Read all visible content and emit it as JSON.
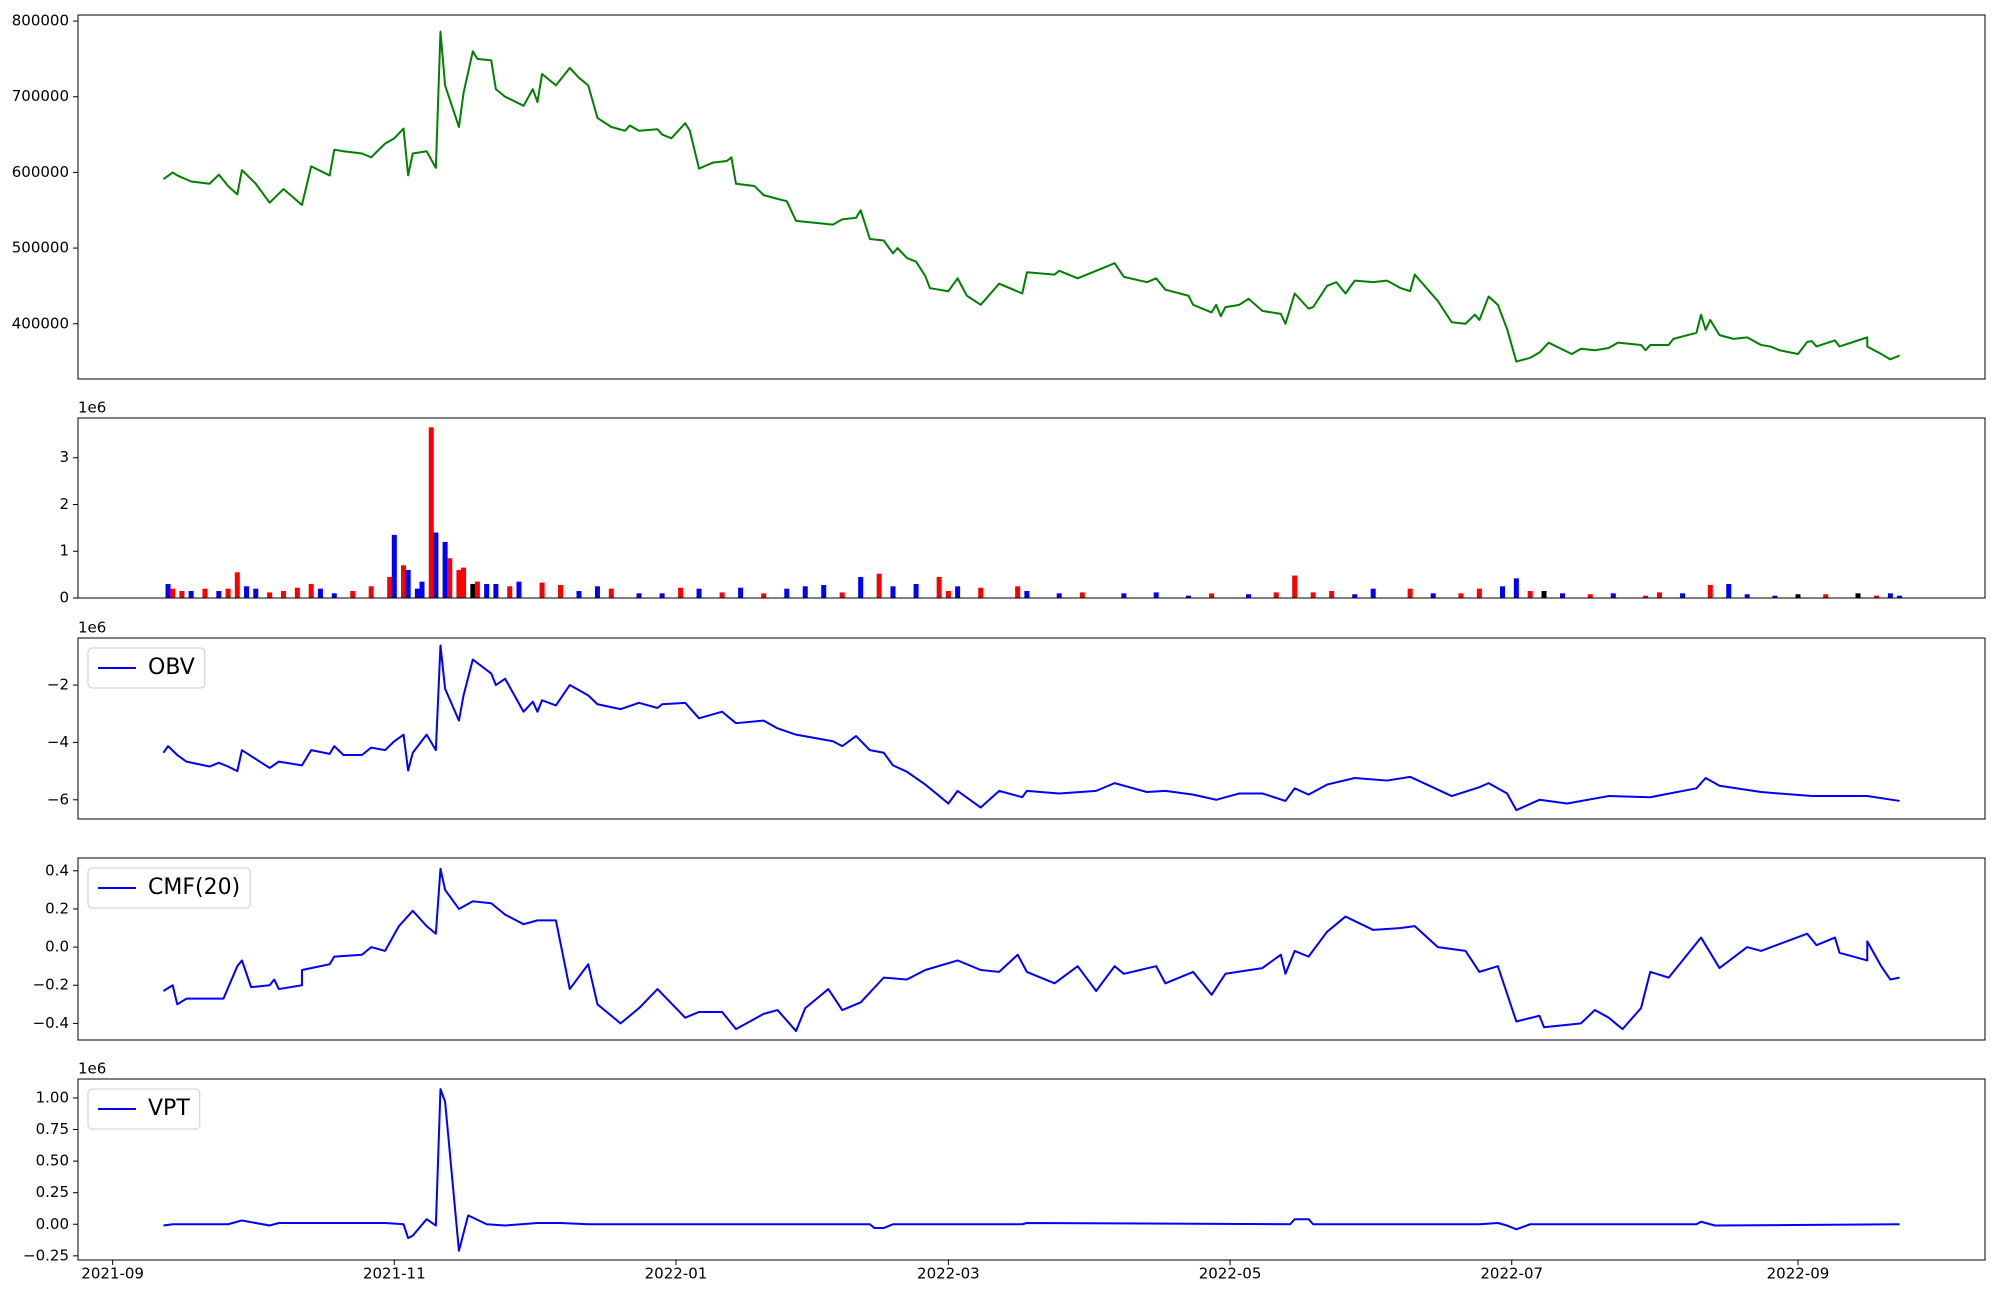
{
  "chart_data": [
    {
      "type": "line",
      "color": "#008000",
      "x": [
        11,
        13,
        14,
        17,
        21,
        23,
        25,
        27,
        28,
        31,
        34,
        37,
        41,
        43,
        47,
        48,
        50,
        54,
        56,
        59,
        61,
        63,
        64,
        65,
        68,
        70,
        71,
        72,
        75,
        76,
        78,
        79,
        82,
        83,
        85,
        89,
        91,
        92,
        93,
        96,
        99,
        101,
        103,
        105,
        108,
        111,
        112,
        114,
        118,
        119,
        121,
        124,
        125,
        127,
        130,
        133,
        134,
        135,
        139,
        141,
        144,
        146,
        148,
        156,
        158,
        161,
        162,
        164,
        167,
        169,
        170,
        172,
        174,
        176,
        177,
        181,
        183,
        185,
        188,
        192,
        197,
        198,
        204,
        205,
        209,
        213,
        217,
        219,
        224,
        226,
        228,
        233,
        234,
        238,
        239,
        240,
        241,
        244,
        246,
        249,
        253,
        254,
        256,
        259,
        260,
        263,
        265,
        267,
        269,
        273,
        276,
        279,
        281,
        282,
        287,
        290,
        293,
        295,
        296,
        298,
        300,
        302,
        304,
        307,
        309,
        311,
        316,
        318,
        321,
        324,
        326,
        331,
        332,
        333,
        337,
        338,
        343,
        344,
        345,
        346,
        348,
        351,
        354,
        357,
        359,
        361,
        365,
        367,
        368,
        369,
        373,
        374,
        380,
        380,
        383,
        385,
        387
      ],
      "values": [
        591000,
        600000,
        596000,
        588000,
        585000,
        597000,
        582000,
        571000,
        603000,
        585000,
        560000,
        578000,
        557000,
        608000,
        596000,
        630000,
        628000,
        625000,
        620000,
        638000,
        645000,
        658000,
        596000,
        625000,
        628000,
        606000,
        786000,
        715000,
        660000,
        705000,
        760000,
        750000,
        748000,
        710000,
        700000,
        688000,
        710000,
        693000,
        730000,
        715000,
        738000,
        725000,
        715000,
        672000,
        660000,
        655000,
        662000,
        655000,
        657000,
        650000,
        645000,
        665000,
        655000,
        605000,
        613000,
        615000,
        620000,
        585000,
        582000,
        570000,
        565000,
        562000,
        536000,
        531000,
        538000,
        540000,
        550000,
        512000,
        510000,
        493000,
        500000,
        487000,
        482000,
        463000,
        447000,
        443000,
        460000,
        437000,
        425000,
        453000,
        440000,
        468000,
        465000,
        470000,
        460000,
        470000,
        480000,
        462000,
        455000,
        460000,
        445000,
        437000,
        425000,
        415000,
        425000,
        410000,
        422000,
        425000,
        433000,
        417000,
        413000,
        400000,
        440000,
        420000,
        422000,
        450000,
        455000,
        440000,
        457000,
        455000,
        457000,
        447000,
        443000,
        465000,
        430000,
        402000,
        400000,
        412000,
        405000,
        436000,
        425000,
        393000,
        350000,
        355000,
        362000,
        375000,
        360000,
        367000,
        365000,
        368000,
        375000,
        372000,
        365000,
        372000,
        372000,
        380000,
        388000,
        412000,
        392000,
        405000,
        385000,
        380000,
        382000,
        372000,
        370000,
        365000,
        360000,
        376000,
        377000,
        370000,
        378000,
        370000,
        382000,
        370000,
        360000,
        353000,
        358000
      ],
      "xlim": [
        -7.5,
        405.5
      ],
      "ylim": [
        327000,
        808000
      ],
      "yticks": [
        400000,
        500000,
        600000,
        700000,
        800000
      ]
    },
    {
      "type": "bar",
      "offset_label": "1e6",
      "x": [
        12,
        13,
        15,
        17,
        20,
        23,
        25,
        27,
        29,
        31,
        34,
        37,
        40,
        43,
        45,
        48,
        52,
        56,
        60,
        61,
        63,
        64,
        66,
        67,
        69,
        70,
        72,
        73,
        75,
        76,
        78,
        79,
        81,
        83,
        86,
        88,
        93,
        97,
        101,
        105,
        108,
        114,
        119,
        123,
        127,
        132,
        136,
        141,
        146,
        150,
        154,
        158,
        162,
        166,
        169,
        174,
        179,
        181,
        183,
        188,
        196,
        198,
        205,
        210,
        219,
        226,
        233,
        238,
        246,
        252,
        256,
        260,
        264,
        269,
        273,
        281,
        286,
        292,
        296,
        301,
        304,
        307,
        310,
        314,
        320,
        325,
        332,
        335,
        340,
        346,
        350,
        354,
        360,
        365,
        371,
        378,
        382,
        385,
        387
      ],
      "values": [
        0.3,
        0.2,
        0.15,
        0.15,
        0.2,
        0.15,
        0.2,
        0.55,
        0.25,
        0.2,
        0.12,
        0.15,
        0.22,
        0.3,
        0.2,
        0.1,
        0.15,
        0.25,
        0.45,
        1.35,
        0.7,
        0.6,
        0.2,
        0.35,
        3.65,
        1.4,
        1.2,
        0.85,
        0.6,
        0.65,
        0.3,
        0.35,
        0.3,
        0.3,
        0.25,
        0.35,
        0.33,
        0.28,
        0.15,
        0.25,
        0.2,
        0.1,
        0.1,
        0.22,
        0.2,
        0.12,
        0.22,
        0.1,
        0.2,
        0.25,
        0.28,
        0.12,
        0.45,
        0.52,
        0.25,
        0.3,
        0.45,
        0.15,
        0.25,
        0.22,
        0.25,
        0.15,
        0.1,
        0.12,
        0.1,
        0.12,
        0.05,
        0.1,
        0.08,
        0.12,
        0.48,
        0.12,
        0.15,
        0.08,
        0.2,
        0.2,
        0.1,
        0.1,
        0.2,
        0.25,
        0.42,
        0.15,
        0.15,
        0.1,
        0.08,
        0.1,
        0.05,
        0.12,
        0.1,
        0.28,
        0.3,
        0.08,
        0.05,
        0.08,
        0.08,
        0.1,
        0.05,
        0.1,
        0.05
      ],
      "colors": [
        "#0000ff",
        "#ff0000",
        "#ff0000",
        "#0000ff",
        "#ff0000",
        "#0000ff",
        "#ff0000",
        "#ff0000",
        "#0000ff",
        "#0000ff",
        "#ff0000",
        "#ff0000",
        "#ff0000",
        "#ff0000",
        "#0000ff",
        "#0000ff",
        "#ff0000",
        "#ff0000",
        "#ff0000",
        "#0000ff",
        "#ff0000",
        "#0000ff",
        "#0000ff",
        "#0000ff",
        "#ff0000",
        "#0000ff",
        "#0000ff",
        "#ff0000",
        "#ff0000",
        "#ff0000",
        "#000000",
        "#ff0000",
        "#0000ff",
        "#0000ff",
        "#ff0000",
        "#0000ff",
        "#ff0000",
        "#ff0000",
        "#0000ff",
        "#0000ff",
        "#ff0000",
        "#0000ff",
        "#0000ff",
        "#ff0000",
        "#0000ff",
        "#ff0000",
        "#0000ff",
        "#ff0000",
        "#0000ff",
        "#0000ff",
        "#0000ff",
        "#ff0000",
        "#0000ff",
        "#ff0000",
        "#0000ff",
        "#0000ff",
        "#ff0000",
        "#ff0000",
        "#0000ff",
        "#ff0000",
        "#ff0000",
        "#0000ff",
        "#0000ff",
        "#ff0000",
        "#0000ff",
        "#0000ff",
        "#0000ff",
        "#ff0000",
        "#0000ff",
        "#ff0000",
        "#ff0000",
        "#ff0000",
        "#ff0000",
        "#0000ff",
        "#0000ff",
        "#ff0000",
        "#0000ff",
        "#ff0000",
        "#ff0000",
        "#0000ff",
        "#0000ff",
        "#ff0000",
        "#000000",
        "#0000ff",
        "#ff0000",
        "#0000ff",
        "#ff0000",
        "#ff0000",
        "#0000ff",
        "#ff0000",
        "#0000ff",
        "#0000ff",
        "#0000ff",
        "#000000",
        "#ff0000",
        "#000000",
        "#ff0000",
        "#0000ff",
        "#0000ff"
      ],
      "xlim": [
        -7.5,
        405.5
      ],
      "ylim": [
        0,
        3.85
      ],
      "yticks": [
        0,
        1,
        2,
        3
      ]
    },
    {
      "type": "line",
      "offset_label": "1e6",
      "legend": "upper left",
      "x": [
        11,
        12,
        14,
        16,
        21,
        23,
        25,
        27,
        28,
        31,
        34,
        36,
        41,
        43,
        47,
        48,
        50,
        54,
        56,
        59,
        61,
        63,
        64,
        65,
        68,
        70,
        71,
        72,
        75,
        76,
        78,
        82,
        83,
        85,
        89,
        91,
        92,
        93,
        96,
        99,
        103,
        105,
        110,
        114,
        118,
        119,
        124,
        127,
        132,
        135,
        141,
        144,
        148,
        156,
        158,
        161,
        164,
        167,
        169,
        172,
        176,
        181,
        183,
        188,
        192,
        197,
        198,
        205,
        213,
        217,
        224,
        228,
        234,
        239,
        244,
        249,
        254,
        256,
        259,
        263,
        269,
        276,
        281,
        290,
        296,
        298,
        302,
        304,
        309,
        315,
        324,
        333,
        343,
        345,
        348,
        357,
        368,
        380,
        387
      ],
      "series": [
        {
          "name": "OBV",
          "color": "#0000ff",
          "values": [
            -4.36,
            -4.13,
            -4.44,
            -4.67,
            -4.84,
            -4.71,
            -4.84,
            -5.0,
            -4.27,
            -4.58,
            -4.89,
            -4.67,
            -4.8,
            -4.27,
            -4.4,
            -4.13,
            -4.44,
            -4.44,
            -4.18,
            -4.27,
            -3.96,
            -3.73,
            -4.98,
            -4.36,
            -3.73,
            -4.27,
            -0.62,
            -2.13,
            -3.24,
            -2.36,
            -1.11,
            -1.6,
            -2.0,
            -1.78,
            -2.93,
            -2.58,
            -2.93,
            -2.53,
            -2.71,
            -2.0,
            -2.36,
            -2.67,
            -2.84,
            -2.62,
            -2.8,
            -2.67,
            -2.62,
            -3.16,
            -2.93,
            -3.33,
            -3.24,
            -3.51,
            -3.73,
            -3.96,
            -4.13,
            -3.78,
            -4.27,
            -4.36,
            -4.8,
            -5.02,
            -5.47,
            -6.13,
            -5.69,
            -6.27,
            -5.69,
            -5.91,
            -5.69,
            -5.78,
            -5.69,
            -5.42,
            -5.73,
            -5.69,
            -5.82,
            -6.0,
            -5.78,
            -5.78,
            -6.04,
            -5.6,
            -5.82,
            -5.47,
            -5.24,
            -5.33,
            -5.2,
            -5.87,
            -5.56,
            -5.42,
            -5.78,
            -6.36,
            -6.0,
            -6.13,
            -5.87,
            -5.91,
            -5.6,
            -5.24,
            -5.51,
            -5.73,
            -5.87,
            -5.87,
            -6.04
          ]
        }
      ],
      "xlim": [
        -7.5,
        405.5
      ],
      "ylim": [
        -6.67,
        -0.36
      ],
      "yticks": [
        {
          "value": -6,
          "label": "−6"
        },
        {
          "value": -4,
          "label": "−4"
        },
        {
          "value": -2,
          "label": "−2"
        }
      ]
    },
    {
      "type": "line",
      "legend": "upper left",
      "x": [
        11,
        13,
        14,
        16,
        24,
        27,
        28,
        30,
        34,
        35,
        36,
        41,
        41,
        47,
        48,
        54,
        56,
        59,
        62,
        65,
        68,
        70,
        71,
        72,
        75,
        78,
        82,
        85,
        89,
        92,
        96,
        99,
        103,
        105,
        110,
        114,
        118,
        124,
        127,
        132,
        135,
        141,
        144,
        148,
        150,
        155,
        158,
        162,
        167,
        172,
        176,
        183,
        188,
        192,
        196,
        198,
        204,
        209,
        213,
        217,
        219,
        226,
        228,
        234,
        238,
        241,
        249,
        253,
        254,
        256,
        259,
        263,
        267,
        273,
        279,
        282,
        287,
        293,
        296,
        300,
        304,
        309,
        310,
        318,
        321,
        324,
        327,
        331,
        333,
        337,
        344,
        348,
        354,
        357,
        367,
        369,
        373,
        374,
        380,
        380,
        383,
        385,
        387
      ],
      "series": [
        {
          "name": "CMF(20)",
          "color": "#0000ff",
          "values": [
            -0.23,
            -0.2,
            -0.3,
            -0.27,
            -0.27,
            -0.1,
            -0.07,
            -0.21,
            -0.2,
            -0.17,
            -0.22,
            -0.2,
            -0.12,
            -0.09,
            -0.05,
            -0.04,
            0.0,
            -0.02,
            0.11,
            0.19,
            0.11,
            0.07,
            0.41,
            0.3,
            0.2,
            0.24,
            0.23,
            0.17,
            0.12,
            0.14,
            0.14,
            -0.22,
            -0.09,
            -0.3,
            -0.4,
            -0.32,
            -0.22,
            -0.37,
            -0.34,
            -0.34,
            -0.43,
            -0.35,
            -0.33,
            -0.44,
            -0.32,
            -0.22,
            -0.33,
            -0.29,
            -0.16,
            -0.17,
            -0.12,
            -0.07,
            -0.12,
            -0.13,
            -0.04,
            -0.13,
            -0.19,
            -0.1,
            -0.23,
            -0.1,
            -0.14,
            -0.1,
            -0.19,
            -0.13,
            -0.25,
            -0.14,
            -0.11,
            -0.04,
            -0.14,
            -0.02,
            -0.05,
            0.08,
            0.16,
            0.09,
            0.1,
            0.11,
            0.0,
            -0.02,
            -0.13,
            -0.1,
            -0.39,
            -0.36,
            -0.42,
            -0.4,
            -0.33,
            -0.37,
            -0.43,
            -0.32,
            -0.13,
            -0.16,
            0.05,
            -0.11,
            0.0,
            -0.02,
            0.07,
            0.01,
            0.05,
            -0.03,
            -0.07,
            0.03,
            -0.1,
            -0.17,
            -0.16
          ]
        }
      ],
      "xlim": [
        -7.5,
        405.5
      ],
      "ylim": [
        -0.487,
        0.467
      ],
      "yticks": [
        {
          "value": -0.4,
          "label": "−0.4"
        },
        {
          "value": -0.2,
          "label": "−0.2"
        },
        {
          "value": 0,
          "label": "0.0"
        },
        0.2,
        0.4
      ]
    },
    {
      "type": "line",
      "offset_label": "1e6",
      "legend": "upper left",
      "x": [
        11,
        13,
        25,
        28,
        34,
        36,
        48,
        59,
        63,
        64,
        65,
        68,
        70,
        71,
        72,
        75,
        77,
        81,
        85,
        92,
        97,
        103,
        164,
        165,
        167,
        169,
        197,
        198,
        255,
        256,
        259,
        260,
        296,
        300,
        302,
        304,
        307,
        343,
        344,
        347,
        387
      ],
      "series": [
        {
          "name": "VPT",
          "color": "#0000ff",
          "values": [
            -0.01,
            0.0,
            0.0,
            0.03,
            -0.01,
            0.01,
            0.01,
            0.01,
            0.0,
            -0.11,
            -0.09,
            0.04,
            -0.01,
            1.07,
            0.97,
            -0.21,
            0.07,
            0.0,
            -0.01,
            0.01,
            0.01,
            0.0,
            0.0,
            -0.03,
            -0.03,
            0.0,
            0.0,
            0.01,
            0.0,
            0.04,
            0.04,
            0.0,
            0.0,
            0.01,
            -0.01,
            -0.04,
            0.0,
            0.0,
            0.02,
            -0.01,
            0.0
          ]
        }
      ],
      "xlim": [
        -7.5,
        405.5
      ],
      "ylim": [
        -0.283,
        1.15
      ],
      "yticks": [
        {
          "value": -0.25,
          "label": "−0.25"
        },
        {
          "value": 0,
          "label": "0.00"
        },
        0.25,
        {
          "value": 0.5,
          "label": "0.50"
        },
        0.75,
        {
          "value": 1,
          "label": "1.00"
        }
      ],
      "xticks": [
        {
          "value": 0,
          "label": "2021-09"
        },
        {
          "value": 61,
          "label": "2021-11"
        },
        {
          "value": 122,
          "label": "2022-01"
        },
        {
          "value": 181,
          "label": "2022-03"
        },
        {
          "value": 242,
          "label": "2022-05"
        },
        {
          "value": 303,
          "label": "2022-07"
        },
        {
          "value": 365,
          "label": "2022-09"
        }
      ]
    }
  ]
}
